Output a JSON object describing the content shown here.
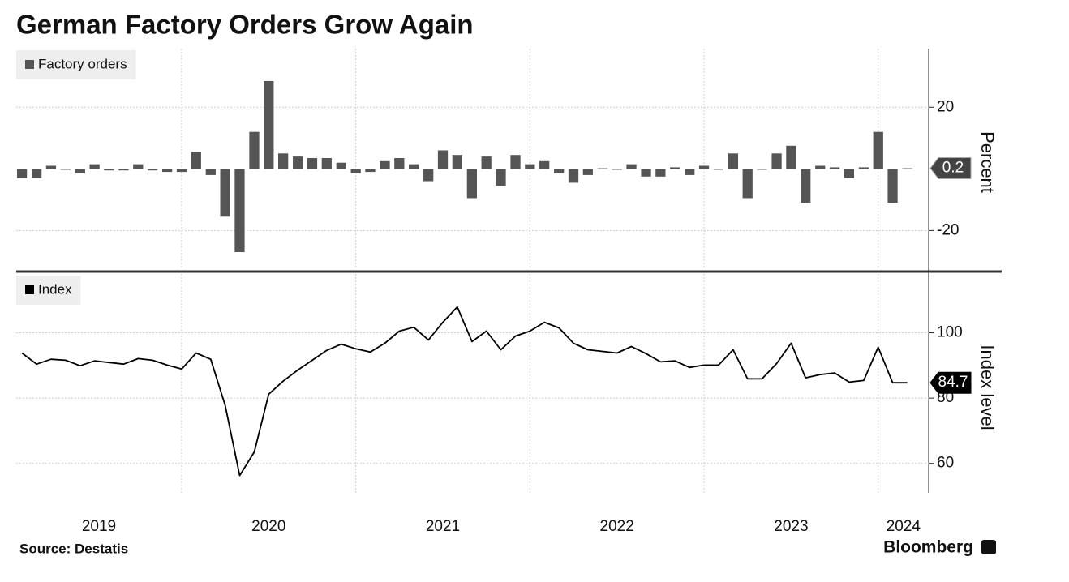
{
  "title": "German Factory Orders Grow Again",
  "source": "Source: Destatis",
  "brand": "Bloomberg",
  "chart_data": [
    {
      "type": "bar",
      "axis_label": "Percent",
      "grid": true,
      "xlim": [
        2019.05,
        2024.29
      ],
      "ylim": [
        -32,
        39
      ],
      "yticks": [
        -20,
        20
      ],
      "x": [
        2019.083,
        2019.167,
        2019.25,
        2019.333,
        2019.417,
        2019.5,
        2019.583,
        2019.667,
        2019.75,
        2019.833,
        2019.917,
        2020,
        2020.083,
        2020.167,
        2020.25,
        2020.333,
        2020.417,
        2020.5,
        2020.583,
        2020.667,
        2020.75,
        2020.833,
        2020.917,
        2021,
        2021.083,
        2021.167,
        2021.25,
        2021.333,
        2021.417,
        2021.5,
        2021.583,
        2021.667,
        2021.75,
        2021.833,
        2021.917,
        2022,
        2022.083,
        2022.167,
        2022.25,
        2022.333,
        2022.417,
        2022.5,
        2022.583,
        2022.667,
        2022.75,
        2022.833,
        2022.917,
        2023,
        2023.083,
        2023.167,
        2023.25,
        2023.333,
        2023.417,
        2023.5,
        2023.583,
        2023.667,
        2023.75,
        2023.833,
        2023.917,
        2024,
        2024.083,
        2024.167
      ],
      "series": [
        {
          "name": "Factory orders",
          "color": "#555555",
          "values": [
            -3,
            -3,
            1,
            -0.3,
            -1.5,
            1.5,
            -0.5,
            -0.5,
            1.5,
            -0.5,
            -1,
            -1,
            5.5,
            -2,
            -15.5,
            -27,
            12,
            28.5,
            5,
            4,
            3.5,
            3.5,
            2,
            -1.5,
            -1,
            2.5,
            3.5,
            1.5,
            -4,
            6,
            4.5,
            -9.5,
            4,
            -5.5,
            4.5,
            1.5,
            2.5,
            -1.5,
            -4.5,
            -2,
            0.2,
            -0.3,
            1.5,
            -2.5,
            -2.5,
            0.5,
            -2,
            1,
            -0.3,
            5,
            -9.5,
            -0.3,
            5,
            7.5,
            -11,
            1,
            0.5,
            -3,
            0.5,
            12,
            -11,
            0.2
          ]
        }
      ]
    },
    {
      "type": "line",
      "axis_label": "Index level",
      "grid": true,
      "xlim": [
        2019.05,
        2024.29
      ],
      "ylim": [
        51,
        118
      ],
      "yticks": [
        60,
        80,
        100
      ],
      "xticks": [
        2019,
        2020,
        2021,
        2022,
        2023,
        2024
      ],
      "x": [
        2019.083,
        2019.167,
        2019.25,
        2019.333,
        2019.417,
        2019.5,
        2019.583,
        2019.667,
        2019.75,
        2019.833,
        2019.917,
        2020,
        2020.083,
        2020.167,
        2020.25,
        2020.333,
        2020.417,
        2020.5,
        2020.583,
        2020.667,
        2020.75,
        2020.833,
        2020.917,
        2021,
        2021.083,
        2021.167,
        2021.25,
        2021.333,
        2021.417,
        2021.5,
        2021.583,
        2021.667,
        2021.75,
        2021.833,
        2021.917,
        2022,
        2022.083,
        2022.167,
        2022.25,
        2022.333,
        2022.417,
        2022.5,
        2022.583,
        2022.667,
        2022.75,
        2022.833,
        2022.917,
        2023,
        2023.083,
        2023.167,
        2023.25,
        2023.333,
        2023.417,
        2023.5,
        2023.583,
        2023.667,
        2023.75,
        2023.833,
        2023.917,
        2024,
        2024.083,
        2024.167
      ],
      "series": [
        {
          "name": "Index",
          "color": "#000000",
          "values": [
            93.8,
            90.4,
            91.9,
            91.6,
            89.9,
            91.4,
            90.9,
            90.4,
            92.1,
            91.6,
            90.1,
            88.9,
            93.8,
            91.9,
            77.8,
            56.3,
            63.5,
            81.2,
            85.2,
            88.6,
            91.6,
            94.6,
            96.5,
            95.1,
            94.1,
            96.8,
            100.5,
            101.7,
            97.8,
            103.2,
            107.9,
            97.3,
            100.5,
            94.8,
            99,
            100.5,
            103.2,
            101.5,
            96.8,
            94.8,
            94.3,
            93.8,
            95.8,
            93.6,
            91.1,
            91.4,
            89.4,
            90.1,
            90.1,
            94.8,
            85.9,
            85.9,
            90.6,
            96.8,
            86.2,
            87.2,
            87.7,
            84.9,
            85.4,
            95.6,
            84.7,
            84.7
          ]
        }
      ]
    }
  ]
}
